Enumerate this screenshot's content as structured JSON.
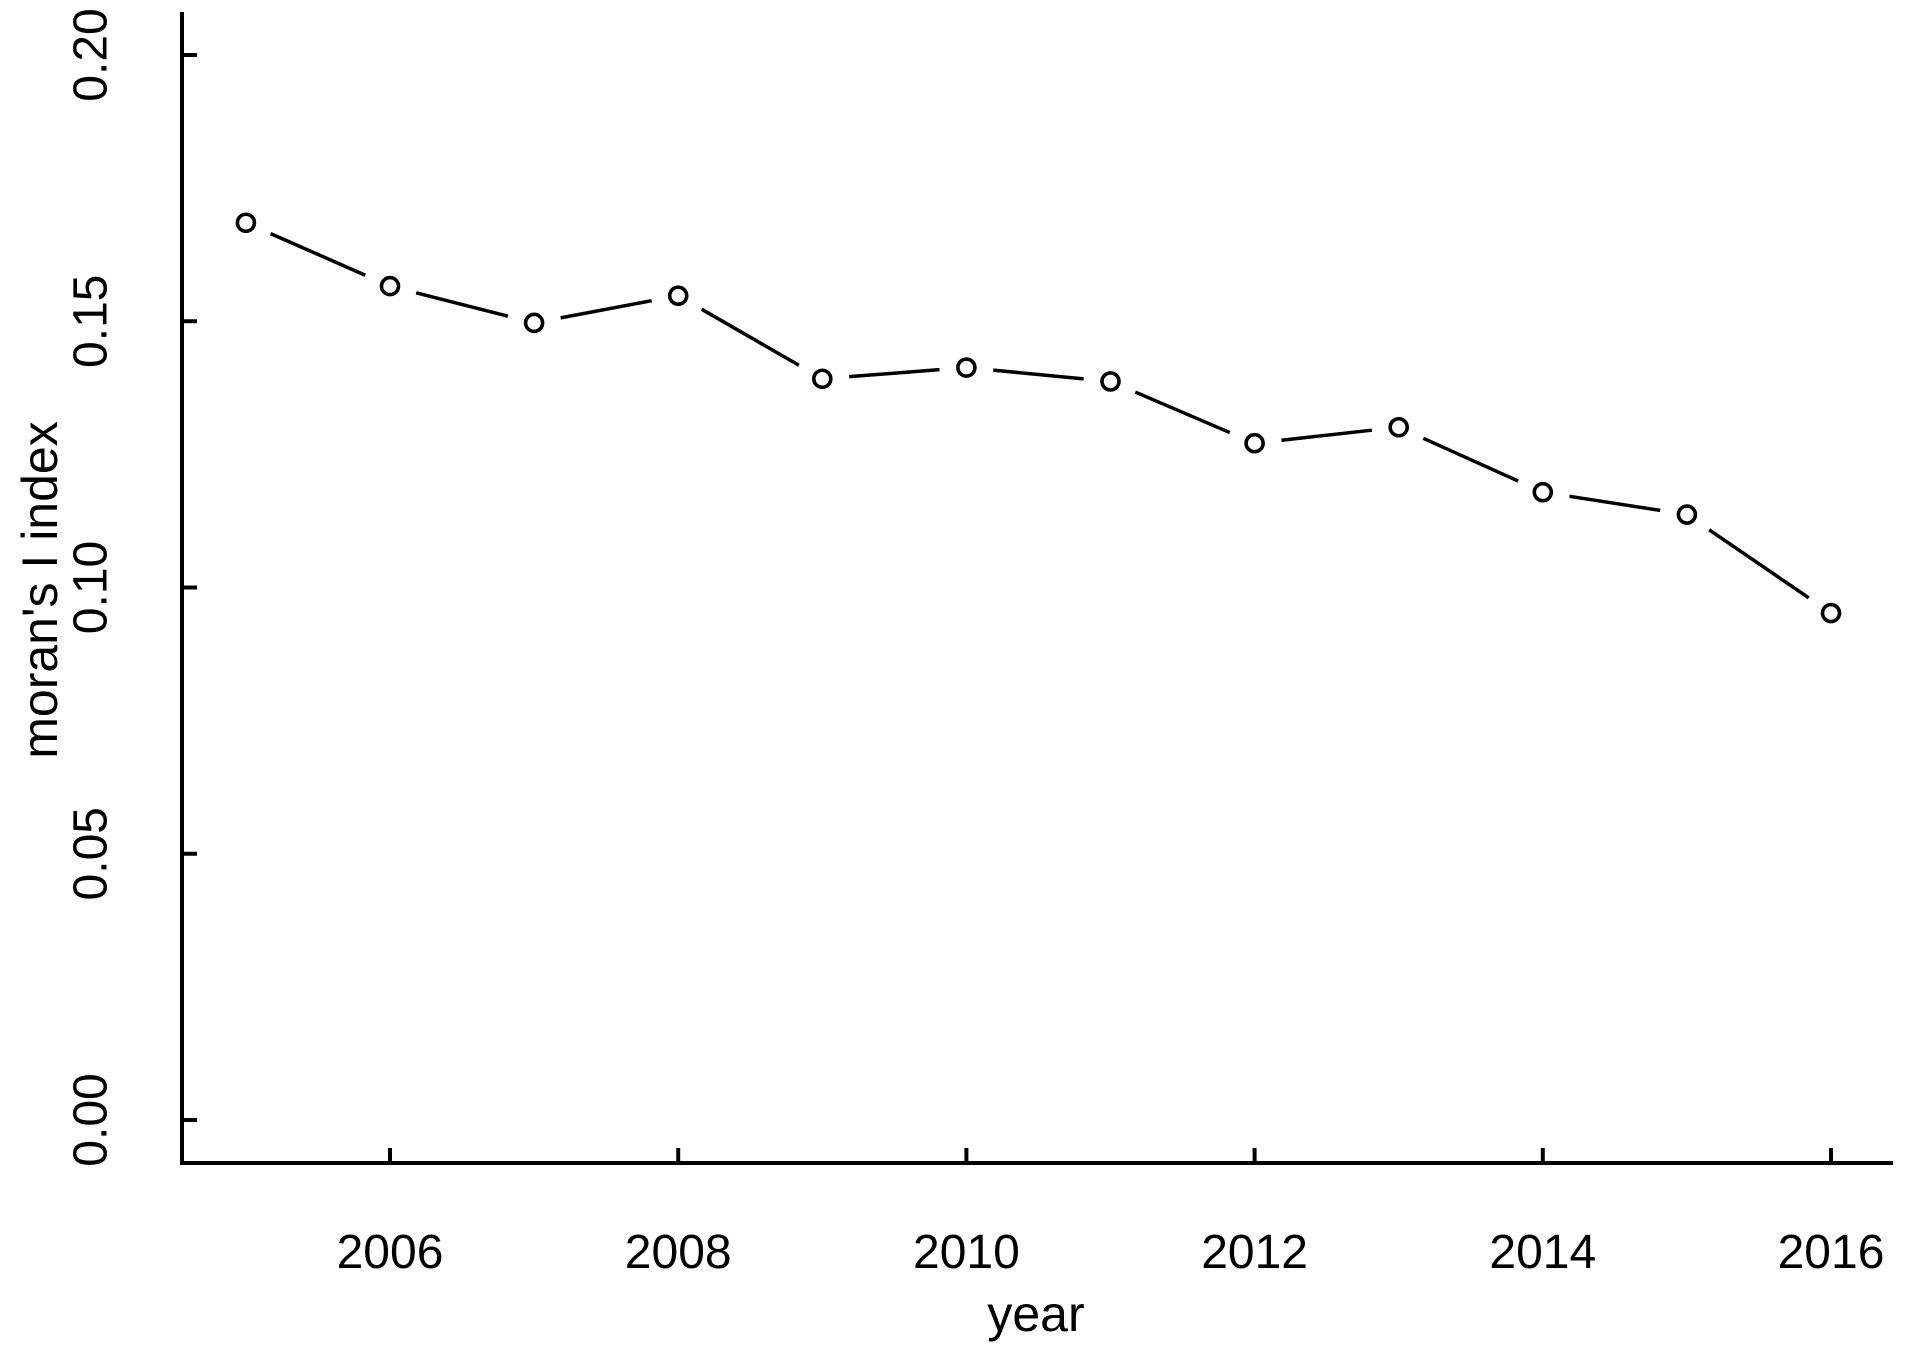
{
  "figure": {
    "background": "#ffffff"
  },
  "chart_data": {
    "type": "line",
    "title": "",
    "xlabel": "year",
    "ylabel": "moran's I index",
    "x": [
      2005,
      2006,
      2007,
      2008,
      2009,
      2010,
      2011,
      2012,
      2013,
      2014,
      2015,
      2016
    ],
    "y": [
      0.1685,
      0.1566,
      0.1497,
      0.1548,
      0.1392,
      0.1413,
      0.1387,
      0.1271,
      0.1301,
      0.1179,
      0.1137,
      0.0952
    ],
    "x_ticks": [
      2006,
      2008,
      2010,
      2012,
      2014,
      2016
    ],
    "y_ticks": [
      "0.00",
      "0.05",
      "0.10",
      "0.15",
      "0.20"
    ],
    "xlim": [
      2004.54,
      2016.43
    ],
    "ylim": [
      -0.008,
      0.208
    ],
    "marker": "open-circle",
    "line_style": "solid-segments-with-marker-gaps",
    "ticks_direction": "inward",
    "grid": false,
    "legend": null,
    "colors": {
      "line": "#000000",
      "marker_fill": "#ffffff",
      "axis": "#000000",
      "text": "#000000",
      "background": "#ffffff"
    }
  }
}
